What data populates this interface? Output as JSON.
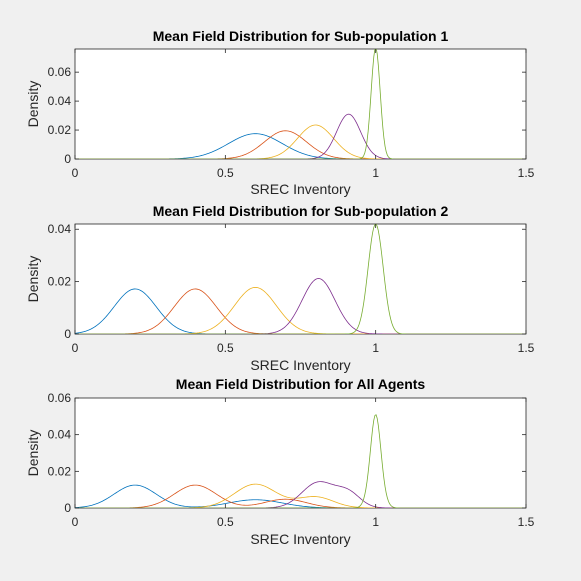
{
  "colors": [
    "#0072bd",
    "#d95319",
    "#edb120",
    "#7e2f8e",
    "#77ac30"
  ],
  "chart_data": [
    {
      "type": "line",
      "title": "Mean Field Distribution for Sub-population 1",
      "xlabel": "SREC Inventory",
      "ylabel": "Density",
      "xlim": [
        0,
        1.5
      ],
      "ylim": [
        0,
        0.076
      ],
      "xticks": [
        0,
        0.5,
        1,
        1.5
      ],
      "xtick_labels": [
        "0",
        "0.5",
        "1",
        "1.5"
      ],
      "yticks": [
        0,
        0.02,
        0.04,
        0.06
      ],
      "ytick_labels": [
        "0",
        "0.02",
        "0.04",
        "0.06"
      ],
      "grid": false,
      "series": [
        {
          "peak_x": 0.6,
          "peak_y": 0.0175,
          "width": 0.09
        },
        {
          "peak_x": 0.7,
          "peak_y": 0.0195,
          "width": 0.07
        },
        {
          "peak_x": 0.8,
          "peak_y": 0.0235,
          "width": 0.06
        },
        {
          "peak_x": 0.91,
          "peak_y": 0.031,
          "width": 0.04
        },
        {
          "peak_x": 1.0,
          "peak_y": 0.077,
          "width": 0.015
        }
      ]
    },
    {
      "type": "line",
      "title": "Mean Field Distribution for Sub-population 2",
      "xlabel": "SREC Inventory",
      "ylabel": "Density",
      "xlim": [
        0,
        1.5
      ],
      "ylim": [
        0,
        0.042
      ],
      "xticks": [
        0,
        0.5,
        1,
        1.5
      ],
      "xtick_labels": [
        "0",
        "0.5",
        "1",
        "1.5"
      ],
      "yticks": [
        0,
        0.02,
        0.04
      ],
      "ytick_labels": [
        "0",
        "0.02",
        "0.04"
      ],
      "grid": false,
      "series": [
        {
          "peak_x": 0.2,
          "peak_y": 0.0172,
          "width": 0.07
        },
        {
          "peak_x": 0.4,
          "peak_y": 0.0172,
          "width": 0.07
        },
        {
          "peak_x": 0.6,
          "peak_y": 0.0178,
          "width": 0.07
        },
        {
          "peak_x": 0.81,
          "peak_y": 0.0212,
          "width": 0.055
        },
        {
          "peak_x": 1.0,
          "peak_y": 0.042,
          "width": 0.025
        }
      ]
    },
    {
      "type": "line",
      "title": "Mean Field Distribution for All Agents",
      "xlabel": "SREC Inventory",
      "ylabel": "Density",
      "xlim": [
        0,
        1.5
      ],
      "ylim": [
        0,
        0.06
      ],
      "xticks": [
        0,
        0.5,
        1,
        1.5
      ],
      "xtick_labels": [
        "0",
        "0.5",
        "1",
        "1.5"
      ],
      "yticks": [
        0,
        0.02,
        0.04,
        0.06
      ],
      "ytick_labels": [
        "0",
        "0.02",
        "0.04",
        "0.06"
      ],
      "grid": false,
      "series": [
        {
          "components": [
            {
              "mu": 0.2,
              "peak": 0.0125,
              "sigma": 0.07
            },
            {
              "mu": 0.6,
              "peak": 0.0045,
              "sigma": 0.09
            }
          ]
        },
        {
          "components": [
            {
              "mu": 0.4,
              "peak": 0.0125,
              "sigma": 0.07
            },
            {
              "mu": 0.7,
              "peak": 0.0048,
              "sigma": 0.07
            }
          ]
        },
        {
          "components": [
            {
              "mu": 0.6,
              "peak": 0.013,
              "sigma": 0.07
            },
            {
              "mu": 0.8,
              "peak": 0.006,
              "sigma": 0.06
            }
          ]
        },
        {
          "components": [
            {
              "mu": 0.81,
              "peak": 0.014,
              "sigma": 0.055
            },
            {
              "mu": 0.91,
              "peak": 0.0075,
              "sigma": 0.04
            }
          ]
        },
        {
          "components": [
            {
              "mu": 1.0,
              "peak": 0.032,
              "sigma": 0.02
            },
            {
              "mu": 1.0,
              "peak": 0.019,
              "sigma": 0.015
            }
          ]
        }
      ]
    }
  ]
}
